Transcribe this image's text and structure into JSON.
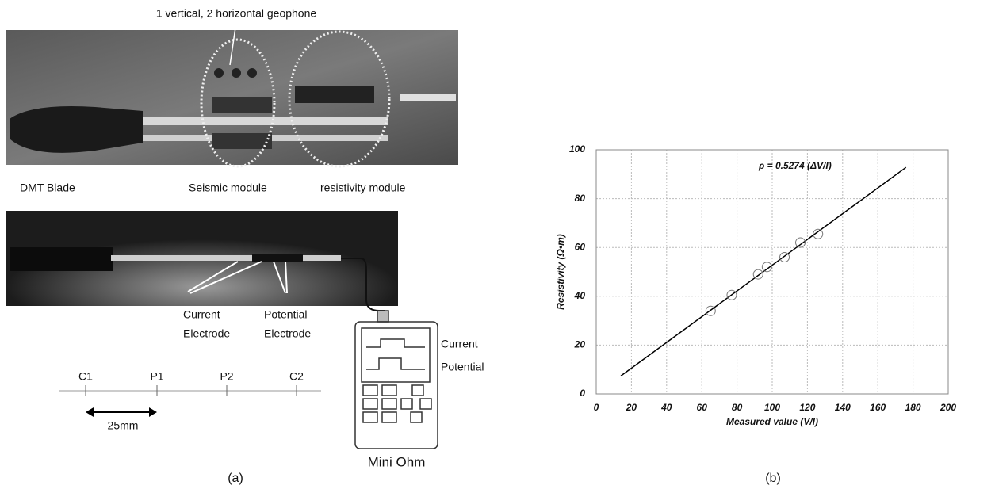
{
  "panel_a": {
    "geophone_label": "1 vertical, 2 horizontal geophone",
    "dmt_blade": "DMT Blade",
    "seismic_module": "Seismic module",
    "resistivity_module": "resistivity module",
    "current_electrode": [
      "Current",
      "Electrode"
    ],
    "potential_electrode": [
      "Potential",
      "Electrode"
    ],
    "meter_current": "Current",
    "meter_potential": "Potential",
    "electrodes": [
      "C1",
      "P1",
      "P2",
      "C2"
    ],
    "spacing": "25mm",
    "meter_name": "Mini Ohm",
    "caption": "(a)"
  },
  "chart_data": {
    "type": "scatter",
    "x": [
      65,
      77,
      92,
      97,
      107,
      116,
      126
    ],
    "values": [
      34,
      40.5,
      49,
      52,
      56,
      62,
      65.5
    ],
    "marker_color": "#777777",
    "fit_line": {
      "x": [
        14,
        176
      ],
      "y": [
        7.4,
        92.8
      ],
      "color": "#000000"
    },
    "annotation": "ρ = 0.5274 (ΔV/I)",
    "xlabel": "Measured value (V/I)",
    "ylabel": "Resistivity (Ω•m)",
    "xlim": [
      0,
      200
    ],
    "ylim": [
      0,
      100
    ],
    "xticks": [
      0,
      20,
      40,
      60,
      80,
      100,
      120,
      140,
      160,
      180,
      200
    ],
    "yticks": [
      0,
      20,
      40,
      60,
      80,
      100
    ],
    "grid": true,
    "caption": "(b)"
  }
}
